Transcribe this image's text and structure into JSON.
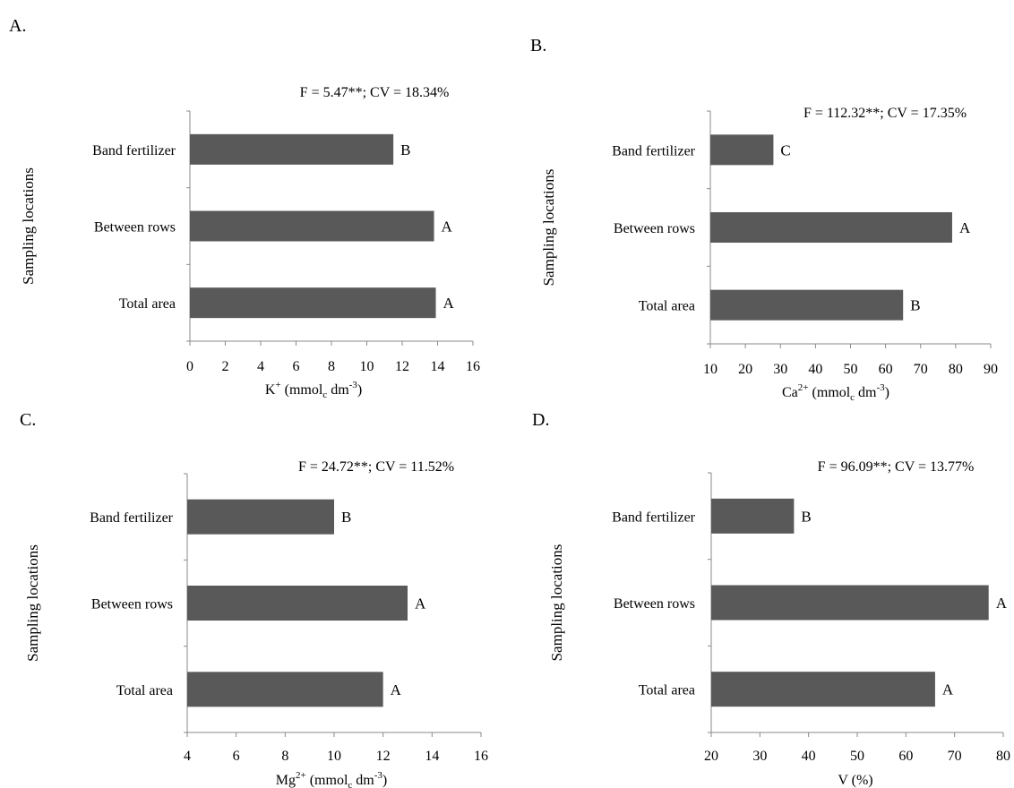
{
  "panels": [
    {
      "letter": "A."
    },
    {
      "letter": "B."
    },
    {
      "letter": "C."
    },
    {
      "letter": "D."
    }
  ],
  "chart_data": [
    {
      "type": "bar",
      "orientation": "horizontal",
      "annotation": "F = 5.47**; CV = 18.34%",
      "ylabel": "Sampling locations",
      "xlabel": {
        "base": "K",
        "sup": "+",
        "unit_a": " (mmol",
        "unit_sub": "c",
        "unit_b": "  dm",
        "unit_sup": "-3",
        "close": ")"
      },
      "categories": [
        "Band fertilizer",
        "Between rows",
        "Total area"
      ],
      "values": [
        11.5,
        13.8,
        13.9
      ],
      "letters": [
        "B",
        "A",
        "A"
      ],
      "xlim": [
        0,
        16
      ],
      "xticks": [
        0,
        2,
        4,
        6,
        8,
        10,
        12,
        14,
        16
      ],
      "grid": false
    },
    {
      "type": "bar",
      "orientation": "horizontal",
      "annotation": "F = 112.32**; CV = 17.35%",
      "ylabel": "Sampling  locations",
      "xlabel": {
        "base": "Ca",
        "sup": "2+",
        "unit_a": " (mmol",
        "unit_sub": "c",
        "unit_b": "  dm",
        "unit_sup": "-3",
        "close": ")"
      },
      "categories": [
        "Band fertilizer",
        "Between rows",
        "Total area"
      ],
      "values": [
        28,
        79,
        65
      ],
      "letters": [
        "C",
        "A",
        "B"
      ],
      "xlim": [
        10,
        90
      ],
      "xticks": [
        10,
        20,
        30,
        40,
        50,
        60,
        70,
        80,
        90
      ],
      "grid": false
    },
    {
      "type": "bar",
      "orientation": "horizontal",
      "annotation": "F = 24.72**; CV = 11.52%",
      "ylabel": "Sampling locations",
      "xlabel": {
        "base": "Mg",
        "sup": "2+",
        "unit_a": " (mmol",
        "unit_sub": "c",
        "unit_b": "  dm",
        "unit_sup": "-3",
        "close": ")"
      },
      "categories": [
        "Band fertilizer",
        "Between rows",
        "Total area"
      ],
      "values": [
        10.0,
        13.0,
        12.0
      ],
      "letters": [
        "B",
        "A",
        "A"
      ],
      "xlim": [
        4,
        16
      ],
      "xticks": [
        4,
        6,
        8,
        10,
        12,
        14,
        16
      ],
      "grid": false
    },
    {
      "type": "bar",
      "orientation": "horizontal",
      "annotation": "F = 96.09**; CV = 13.77%",
      "ylabel": "Sampling  locations",
      "xlabel": {
        "base": "V (%)",
        "sup": "",
        "unit_a": "",
        "unit_sub": "",
        "unit_b": "",
        "unit_sup": "",
        "close": ""
      },
      "categories": [
        "Band fertilizer",
        "Between rows",
        "Total area"
      ],
      "values": [
        37,
        77,
        66
      ],
      "letters": [
        "B",
        "A",
        "A"
      ],
      "xlim": [
        20,
        80
      ],
      "xticks": [
        20,
        30,
        40,
        50,
        60,
        70,
        80
      ],
      "grid": false
    }
  ]
}
